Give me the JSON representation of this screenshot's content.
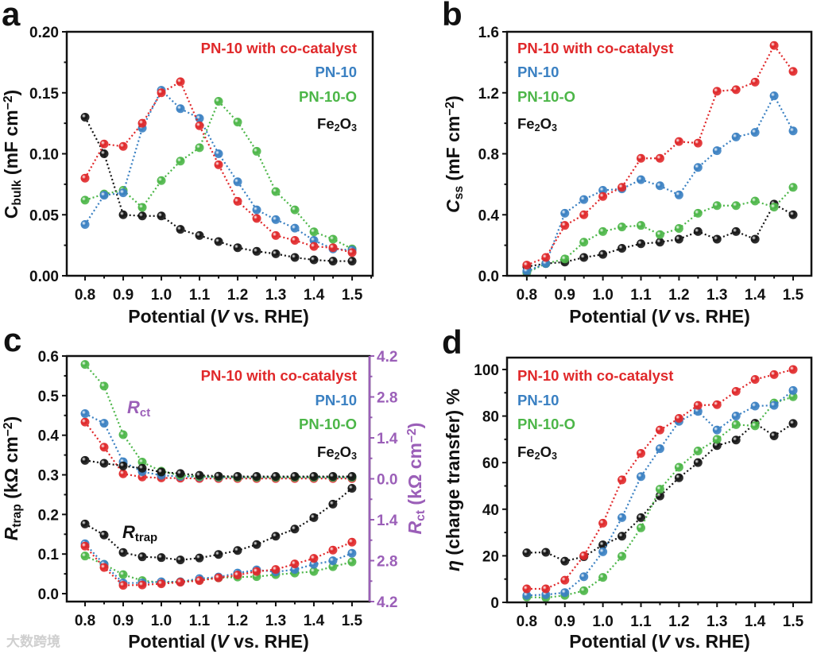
{
  "watermark": "大数跨境",
  "colors": {
    "red": "#e0282a",
    "blue": "#3a80c2",
    "green": "#4cb648",
    "black": "#141414",
    "purple": "#9b5fb8"
  },
  "chart_data": [
    {
      "panel": "a",
      "type": "line",
      "xlabel": [
        {
          "t": "Potential ("
        },
        {
          "t": "V",
          "it": true
        },
        {
          "t": " vs. RHE)"
        }
      ],
      "ylabel": [
        {
          "t": "C"
        },
        {
          "t": "bulk",
          "sub": true
        },
        {
          "t": " (mF cm"
        },
        {
          "t": "−2",
          "sup": true
        },
        {
          "t": ")"
        }
      ],
      "xlim": [
        0.752,
        1.554
      ],
      "ylim": [
        0,
        0.2
      ],
      "xticks": [
        "0.8",
        "0.9",
        "1.0",
        "1.1",
        "1.2",
        "1.3",
        "1.4",
        "1.5"
      ],
      "yticks": [
        "0.00",
        "0.05",
        "0.10",
        "0.15",
        "0.20"
      ],
      "x": [
        0.8,
        0.85,
        0.9,
        0.95,
        1.0,
        1.05,
        1.1,
        1.15,
        1.2,
        1.25,
        1.3,
        1.35,
        1.4,
        1.45,
        1.5
      ],
      "legend_position": "top-right",
      "series": [
        {
          "legend": [
            {
              "t": "PN-10 with co-catalyst"
            }
          ],
          "color": "#e0282a",
          "values": [
            0.08,
            0.108,
            0.106,
            0.125,
            0.15,
            0.159,
            0.123,
            0.091,
            0.061,
            0.047,
            0.033,
            0.029,
            0.024,
            0.023,
            0.019
          ]
        },
        {
          "legend": [
            {
              "t": "PN-10"
            }
          ],
          "color": "#3a80c2",
          "values": [
            0.042,
            0.066,
            0.068,
            0.121,
            0.152,
            0.137,
            0.129,
            0.1,
            0.077,
            0.054,
            0.046,
            0.039,
            0.029,
            0.022,
            0.021
          ]
        },
        {
          "legend": [
            {
              "t": "PN-10-O"
            }
          ],
          "color": "#4cb648",
          "values": [
            0.062,
            0.067,
            0.07,
            0.056,
            0.078,
            0.094,
            0.105,
            0.143,
            0.126,
            0.102,
            0.069,
            0.054,
            0.036,
            0.03,
            0.022
          ]
        },
        {
          "legend": [
            {
              "t": "Fe"
            },
            {
              "t": "2",
              "sub": true
            },
            {
              "t": "O"
            },
            {
              "t": "3",
              "sub": true
            }
          ],
          "color": "#141414",
          "values": [
            0.13,
            0.1,
            0.05,
            0.049,
            0.049,
            0.038,
            0.033,
            0.028,
            0.023,
            0.02,
            0.018,
            0.015,
            0.013,
            0.012,
            0.012
          ]
        }
      ]
    },
    {
      "panel": "b",
      "type": "line",
      "xlabel": [
        {
          "t": "Potential ("
        },
        {
          "t": "V",
          "it": true
        },
        {
          "t": " vs. RHE)"
        }
      ],
      "ylabel": [
        {
          "t": "C",
          "it": true
        },
        {
          "t": "ss",
          "sub": true
        },
        {
          "t": " (mF cm"
        },
        {
          "t": "−2",
          "sup": true
        },
        {
          "t": ")"
        }
      ],
      "xlim": [
        0.748,
        1.548
      ],
      "ylim": [
        0,
        1.6
      ],
      "xticks": [
        "0.8",
        "0.9",
        "1.0",
        "1.1",
        "1.2",
        "1.3",
        "1.4",
        "1.5"
      ],
      "yticks": [
        "0.0",
        "0.4",
        "0.8",
        "1.2",
        "1.6"
      ],
      "x": [
        0.8,
        0.85,
        0.9,
        0.95,
        1.0,
        1.05,
        1.1,
        1.15,
        1.2,
        1.25,
        1.3,
        1.35,
        1.4,
        1.45,
        1.5
      ],
      "legend_position": "top-left",
      "series": [
        {
          "legend": [
            {
              "t": "PN-10 with co-catalyst"
            }
          ],
          "color": "#e0282a",
          "values": [
            0.07,
            0.12,
            0.33,
            0.4,
            0.52,
            0.58,
            0.77,
            0.77,
            0.88,
            0.87,
            1.21,
            1.22,
            1.27,
            1.51,
            1.34
          ]
        },
        {
          "legend": [
            {
              "t": "PN-10"
            }
          ],
          "color": "#3a80c2",
          "values": [
            0.03,
            0.08,
            0.41,
            0.5,
            0.56,
            0.57,
            0.63,
            0.59,
            0.53,
            0.71,
            0.82,
            0.91,
            0.94,
            1.18,
            0.95
          ]
        },
        {
          "legend": [
            {
              "t": "PN-10-O"
            }
          ],
          "color": "#4cb648",
          "values": [
            0.02,
            0.08,
            0.11,
            0.22,
            0.29,
            0.32,
            0.33,
            0.27,
            0.31,
            0.41,
            0.46,
            0.46,
            0.49,
            0.45,
            0.58
          ]
        },
        {
          "legend": [
            {
              "t": "Fe"
            },
            {
              "t": "2",
              "sub": true
            },
            {
              "t": "O"
            },
            {
              "t": "3",
              "sub": true
            }
          ],
          "color": "#141414",
          "values": [
            0.06,
            0.08,
            0.09,
            0.12,
            0.14,
            0.18,
            0.21,
            0.22,
            0.24,
            0.29,
            0.24,
            0.29,
            0.24,
            0.47,
            0.4
          ]
        }
      ]
    },
    {
      "panel": "c",
      "type": "line",
      "xlabel": [
        {
          "t": "Potential ("
        },
        {
          "t": "V",
          "it": true
        },
        {
          "t": " vs. RHE)"
        }
      ],
      "ylabel": [
        {
          "t": "R",
          "it": true
        },
        {
          "t": "trap",
          "sub": true
        },
        {
          "t": " (kΩ cm"
        },
        {
          "t": "−2",
          "sup": true
        },
        {
          "t": ")"
        }
      ],
      "y2label": [
        {
          "t": "R",
          "it": true
        },
        {
          "t": "ct",
          "sub": true
        },
        {
          "t": " (kΩ cm"
        },
        {
          "t": "−2",
          "sup": true
        },
        {
          "t": ")"
        }
      ],
      "xlim": [
        0.752,
        1.546
      ],
      "ylim": [
        -0.02,
        0.6
      ],
      "xticks": [
        "0.8",
        "0.9",
        "1.0",
        "1.1",
        "1.2",
        "1.3",
        "1.4",
        "1.5"
      ],
      "yticks": [
        "0.0",
        "0.1",
        "0.2",
        "0.3",
        "0.4",
        "0.5",
        "0.6"
      ],
      "y2ticks": [
        "4.2",
        "2.8",
        "1.4",
        "0.0",
        "1.4",
        "2.8",
        "4.2"
      ],
      "annotations": {
        "rct": [
          {
            "t": "R",
            "it": true
          },
          {
            "t": "ct",
            "sub": true
          }
        ],
        "rtrap": [
          {
            "t": "R",
            "it": true
          },
          {
            "t": "trap",
            "sub": true
          }
        ]
      },
      "x": [
        0.8,
        0.85,
        0.9,
        0.95,
        1.0,
        1.05,
        1.1,
        1.15,
        1.2,
        1.25,
        1.3,
        1.35,
        1.4,
        1.45,
        1.5
      ],
      "legend_position": "top-right",
      "series": [
        {
          "legend": [
            {
              "t": "PN-10 with co-catalyst"
            }
          ],
          "color": "#e0282a",
          "values": [
            0.12,
            0.066,
            0.021,
            0.022,
            0.025,
            0.029,
            0.033,
            0.04,
            0.047,
            0.056,
            0.061,
            0.075,
            0.089,
            0.11,
            0.13
          ],
          "rct": [
            1.94,
            1.08,
            0.17,
            0.06,
            0.03,
            0.02,
            0.01,
            0.01,
            0.01,
            0.01,
            0.01,
            0.01,
            0.01,
            0.01,
            0.01
          ]
        },
        {
          "legend": [
            {
              "t": "PN-10"
            }
          ],
          "color": "#3a80c2",
          "values": [
            0.126,
            0.074,
            0.027,
            0.027,
            0.03,
            0.03,
            0.038,
            0.042,
            0.052,
            0.06,
            0.055,
            0.061,
            0.074,
            0.083,
            0.102
          ],
          "rct": [
            2.23,
            1.9,
            0.58,
            0.24,
            0.12,
            0.08,
            0.06,
            0.05,
            0.05,
            0.05,
            0.05,
            0.05,
            0.05,
            0.05,
            0.05
          ]
        },
        {
          "legend": [
            {
              "t": "PN-10-O"
            }
          ],
          "color": "#4cb648",
          "values": [
            0.095,
            0.074,
            0.048,
            0.033,
            0.028,
            0.03,
            0.035,
            0.04,
            0.042,
            0.043,
            0.048,
            0.052,
            0.056,
            0.068,
            0.08
          ],
          "rct": [
            3.91,
            3.17,
            1.51,
            0.57,
            0.26,
            0.12,
            0.08,
            0.06,
            0.05,
            0.05,
            0.05,
            0.05,
            0.05,
            0.05,
            0.05
          ]
        },
        {
          "legend": [
            {
              "t": "Fe"
            },
            {
              "t": "2",
              "sub": true
            },
            {
              "t": "O"
            },
            {
              "t": "3",
              "sub": true
            }
          ],
          "color": "#141414",
          "values": [
            0.176,
            0.148,
            0.104,
            0.093,
            0.091,
            0.085,
            0.09,
            0.099,
            0.109,
            0.124,
            0.145,
            0.163,
            0.192,
            0.226,
            0.266
          ],
          "rct": [
            0.63,
            0.53,
            0.44,
            0.36,
            0.23,
            0.18,
            0.12,
            0.09,
            0.08,
            0.08,
            0.08,
            0.08,
            0.08,
            0.08,
            0.08
          ]
        }
      ]
    },
    {
      "panel": "d",
      "type": "line",
      "xlabel": [
        {
          "t": "Potential ("
        },
        {
          "t": "V",
          "it": true
        },
        {
          "t": " vs. RHE)"
        }
      ],
      "ylabel": [
        {
          "t": "η",
          "it": true
        },
        {
          "t": " (charge transfer) %"
        }
      ],
      "xlim": [
        0.748,
        1.548
      ],
      "ylim": [
        0,
        105.1
      ],
      "xticks": [
        "0.8",
        "0.9",
        "1.0",
        "1.1",
        "1.2",
        "1.3",
        "1.4",
        "1.5"
      ],
      "yticks": [
        "0",
        "20",
        "40",
        "60",
        "80",
        "100"
      ],
      "x": [
        0.8,
        0.85,
        0.9,
        0.95,
        1.0,
        1.05,
        1.1,
        1.15,
        1.2,
        1.25,
        1.3,
        1.35,
        1.4,
        1.45,
        1.5
      ],
      "legend_position": "top-left",
      "series": [
        {
          "legend": [
            {
              "t": "PN-10 with co-catalyst"
            }
          ],
          "color": "#e0282a",
          "values": [
            5.8,
            5.8,
            9.5,
            20,
            34,
            52.6,
            64,
            74,
            79,
            84.6,
            84.9,
            90.6,
            95.7,
            97.8,
            100
          ]
        },
        {
          "legend": [
            {
              "t": "PN-10"
            }
          ],
          "color": "#3a80c2",
          "values": [
            3,
            3.3,
            4.2,
            11,
            21.7,
            36.4,
            54,
            66,
            77.7,
            82,
            74,
            80,
            84.3,
            84.6,
            91
          ]
        },
        {
          "legend": [
            {
              "t": "PN-10-O"
            }
          ],
          "color": "#4cb648",
          "values": [
            2.3,
            2,
            3,
            5,
            10.7,
            19.8,
            32,
            48.6,
            58,
            65,
            70,
            76.3,
            75.8,
            85.6,
            88.3
          ]
        },
        {
          "legend": [
            {
              "t": "Fe"
            },
            {
              "t": "2",
              "sub": true
            },
            {
              "t": "O"
            },
            {
              "t": "3",
              "sub": true
            }
          ],
          "color": "#141414",
          "values": [
            21.3,
            21.5,
            17.7,
            19.6,
            24.7,
            28.4,
            36.4,
            45.7,
            53.5,
            60,
            67.3,
            69.7,
            76.9,
            71.5,
            76.8
          ]
        }
      ]
    }
  ]
}
